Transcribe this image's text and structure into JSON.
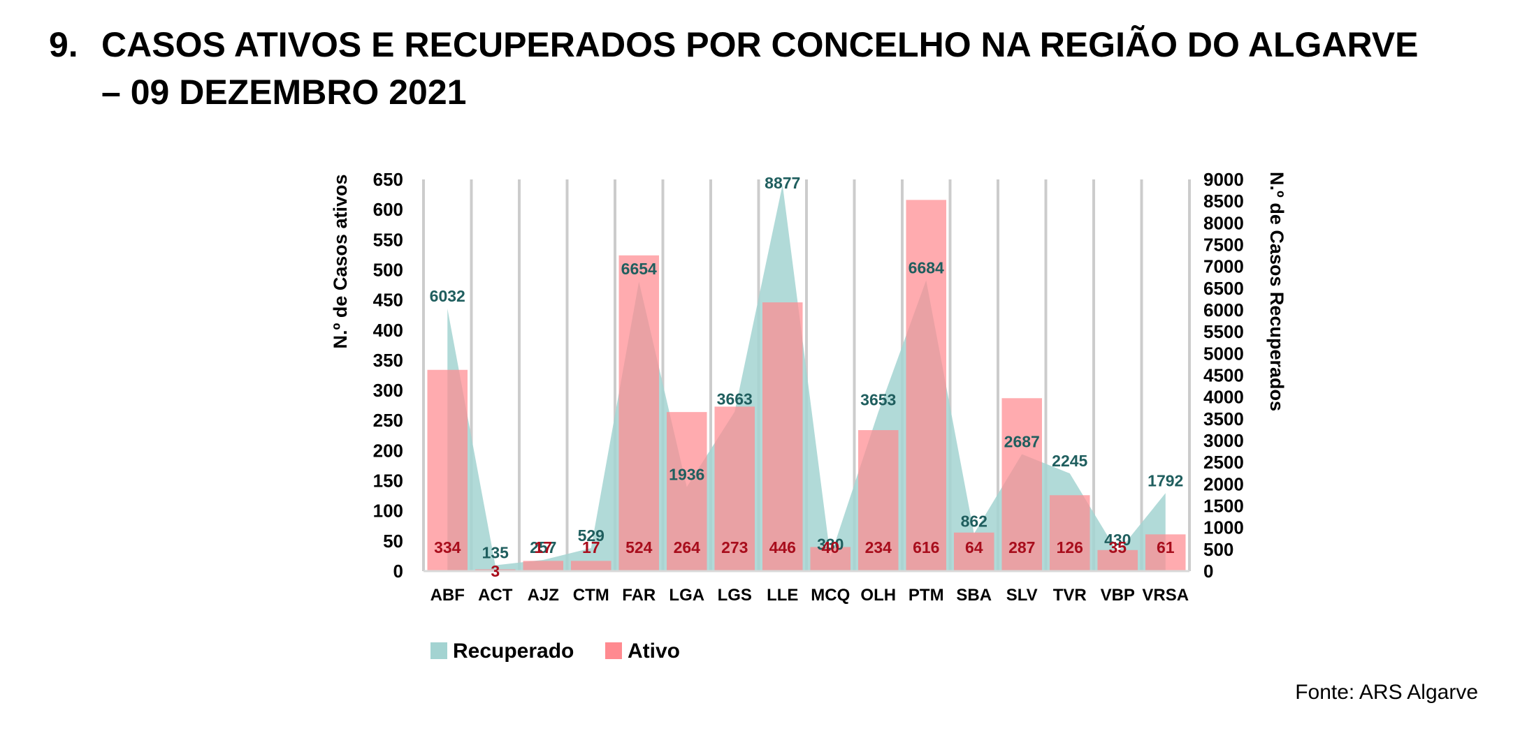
{
  "heading": {
    "number": "9.",
    "line1": "CASOS ATIVOS E RECUPERADOS POR CONCELHO NA REGIÃO DO ALGARVE",
    "line2": "– 09 DEZEMBRO 2021"
  },
  "source": "Fonte: ARS Algarve",
  "colors": {
    "recuperado": "#a3d3d1",
    "ativo": "#ff8a90",
    "recuperado_label": "#1f5e5e",
    "ativo_label": "#a80d1c",
    "grid": "#cccccc"
  },
  "chart_data": {
    "type": "bar",
    "title": "",
    "categories": [
      "ABF",
      "ACT",
      "AJZ",
      "CTM",
      "FAR",
      "LGA",
      "LGS",
      "LLE",
      "MCQ",
      "OLH",
      "PTM",
      "SBA",
      "SLV",
      "TVR",
      "VBP",
      "VRSA"
    ],
    "ylabel_left": "N.º de Casos ativos",
    "ylabel_right": "N.º de Casos Recuperados",
    "ylim_left": [
      0,
      650
    ],
    "ylim_right": [
      0,
      9000
    ],
    "yticks_left": [
      0,
      50,
      100,
      150,
      200,
      250,
      300,
      350,
      400,
      450,
      500,
      550,
      600,
      650
    ],
    "yticks_right": [
      0,
      500,
      1000,
      1500,
      2000,
      2500,
      3000,
      3500,
      4000,
      4500,
      5000,
      5500,
      6000,
      6500,
      7000,
      7500,
      8000,
      8500,
      9000
    ],
    "series": [
      {
        "name": "Recuperado",
        "type": "area",
        "axis": "right",
        "values": [
          6032,
          135,
          257,
          529,
          6654,
          1936,
          3663,
          8877,
          330,
          3653,
          6684,
          862,
          2687,
          2245,
          430,
          1792
        ]
      },
      {
        "name": "Ativo",
        "type": "bar",
        "axis": "left",
        "values": [
          334,
          3,
          17,
          17,
          524,
          264,
          273,
          446,
          40,
          234,
          616,
          64,
          287,
          126,
          35,
          61
        ]
      }
    ],
    "legend": "bottom-left",
    "grid": "vertical"
  }
}
